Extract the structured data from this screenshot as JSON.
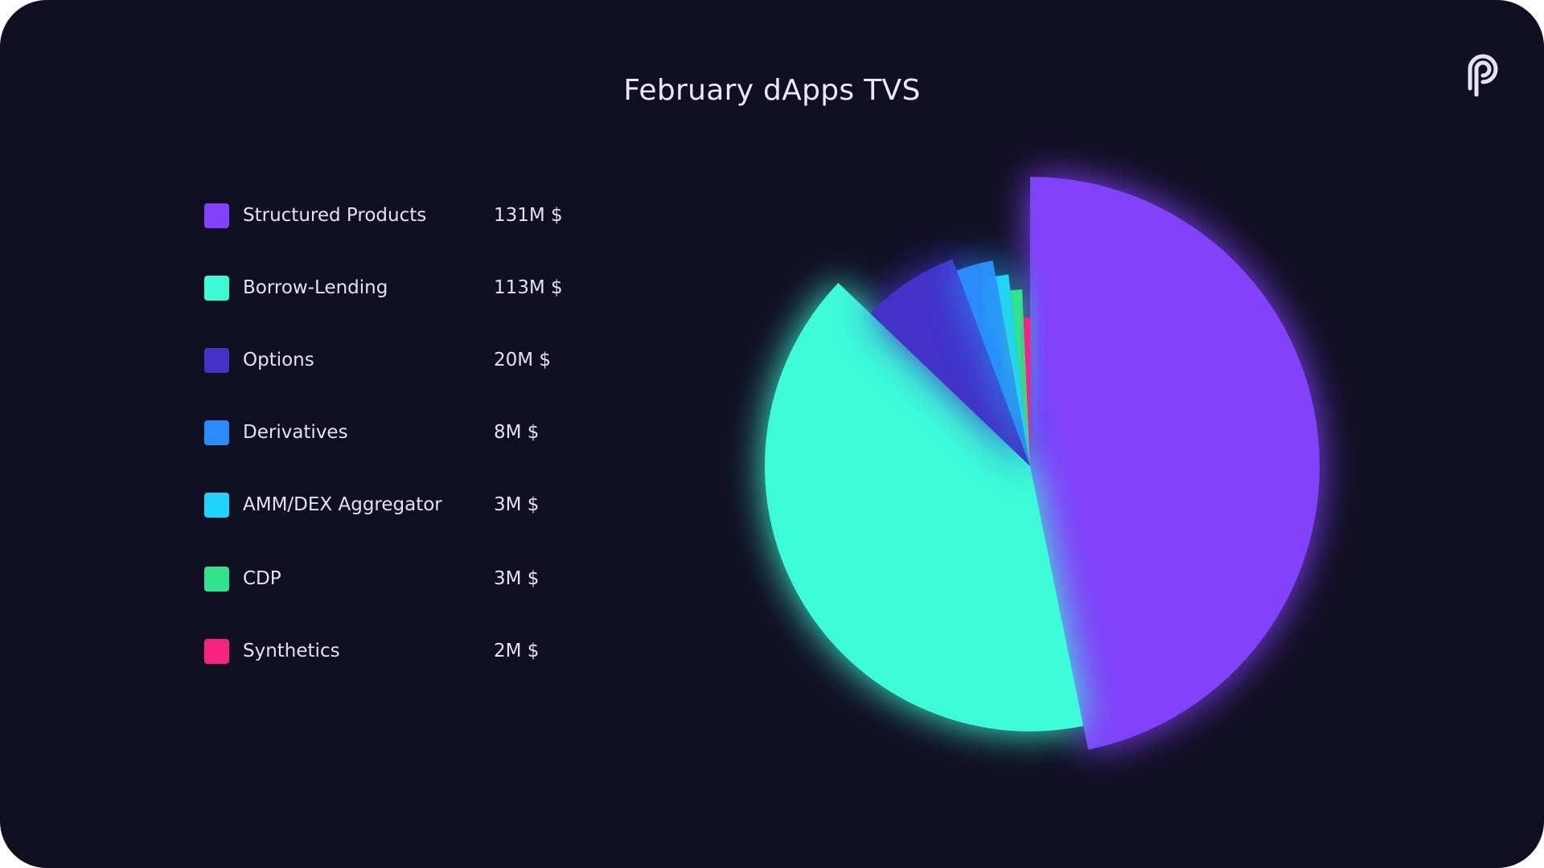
{
  "chart_data": {
    "type": "pie",
    "title": "February dApps TVS",
    "legend": "left",
    "slices": [
      {
        "label": "Structured Products",
        "display_value": "131M $",
        "value": 131,
        "color": "#8142f9"
      },
      {
        "label": "Borrow-Lending",
        "display_value": "113M $",
        "value": 113,
        "color": "#3cfcd8"
      },
      {
        "label": "Options",
        "display_value": "20M $",
        "value": 20,
        "color": "#4232c6"
      },
      {
        "label": "Derivatives",
        "display_value": "8M $",
        "value": 8,
        "color": "#2a8bf9"
      },
      {
        "label": "AMM/DEX Aggregator",
        "display_value": "3M $",
        "value": 3,
        "color": "#22d3f9"
      },
      {
        "label": "CDP",
        "display_value": "3M $",
        "value": 3,
        "color": "#31e38d"
      },
      {
        "label": "Synthetics",
        "display_value": "2M $",
        "value": 2,
        "color": "#f72382"
      }
    ]
  },
  "background_color": "#100f22",
  "logo_icon": "pyth-logo-icon"
}
